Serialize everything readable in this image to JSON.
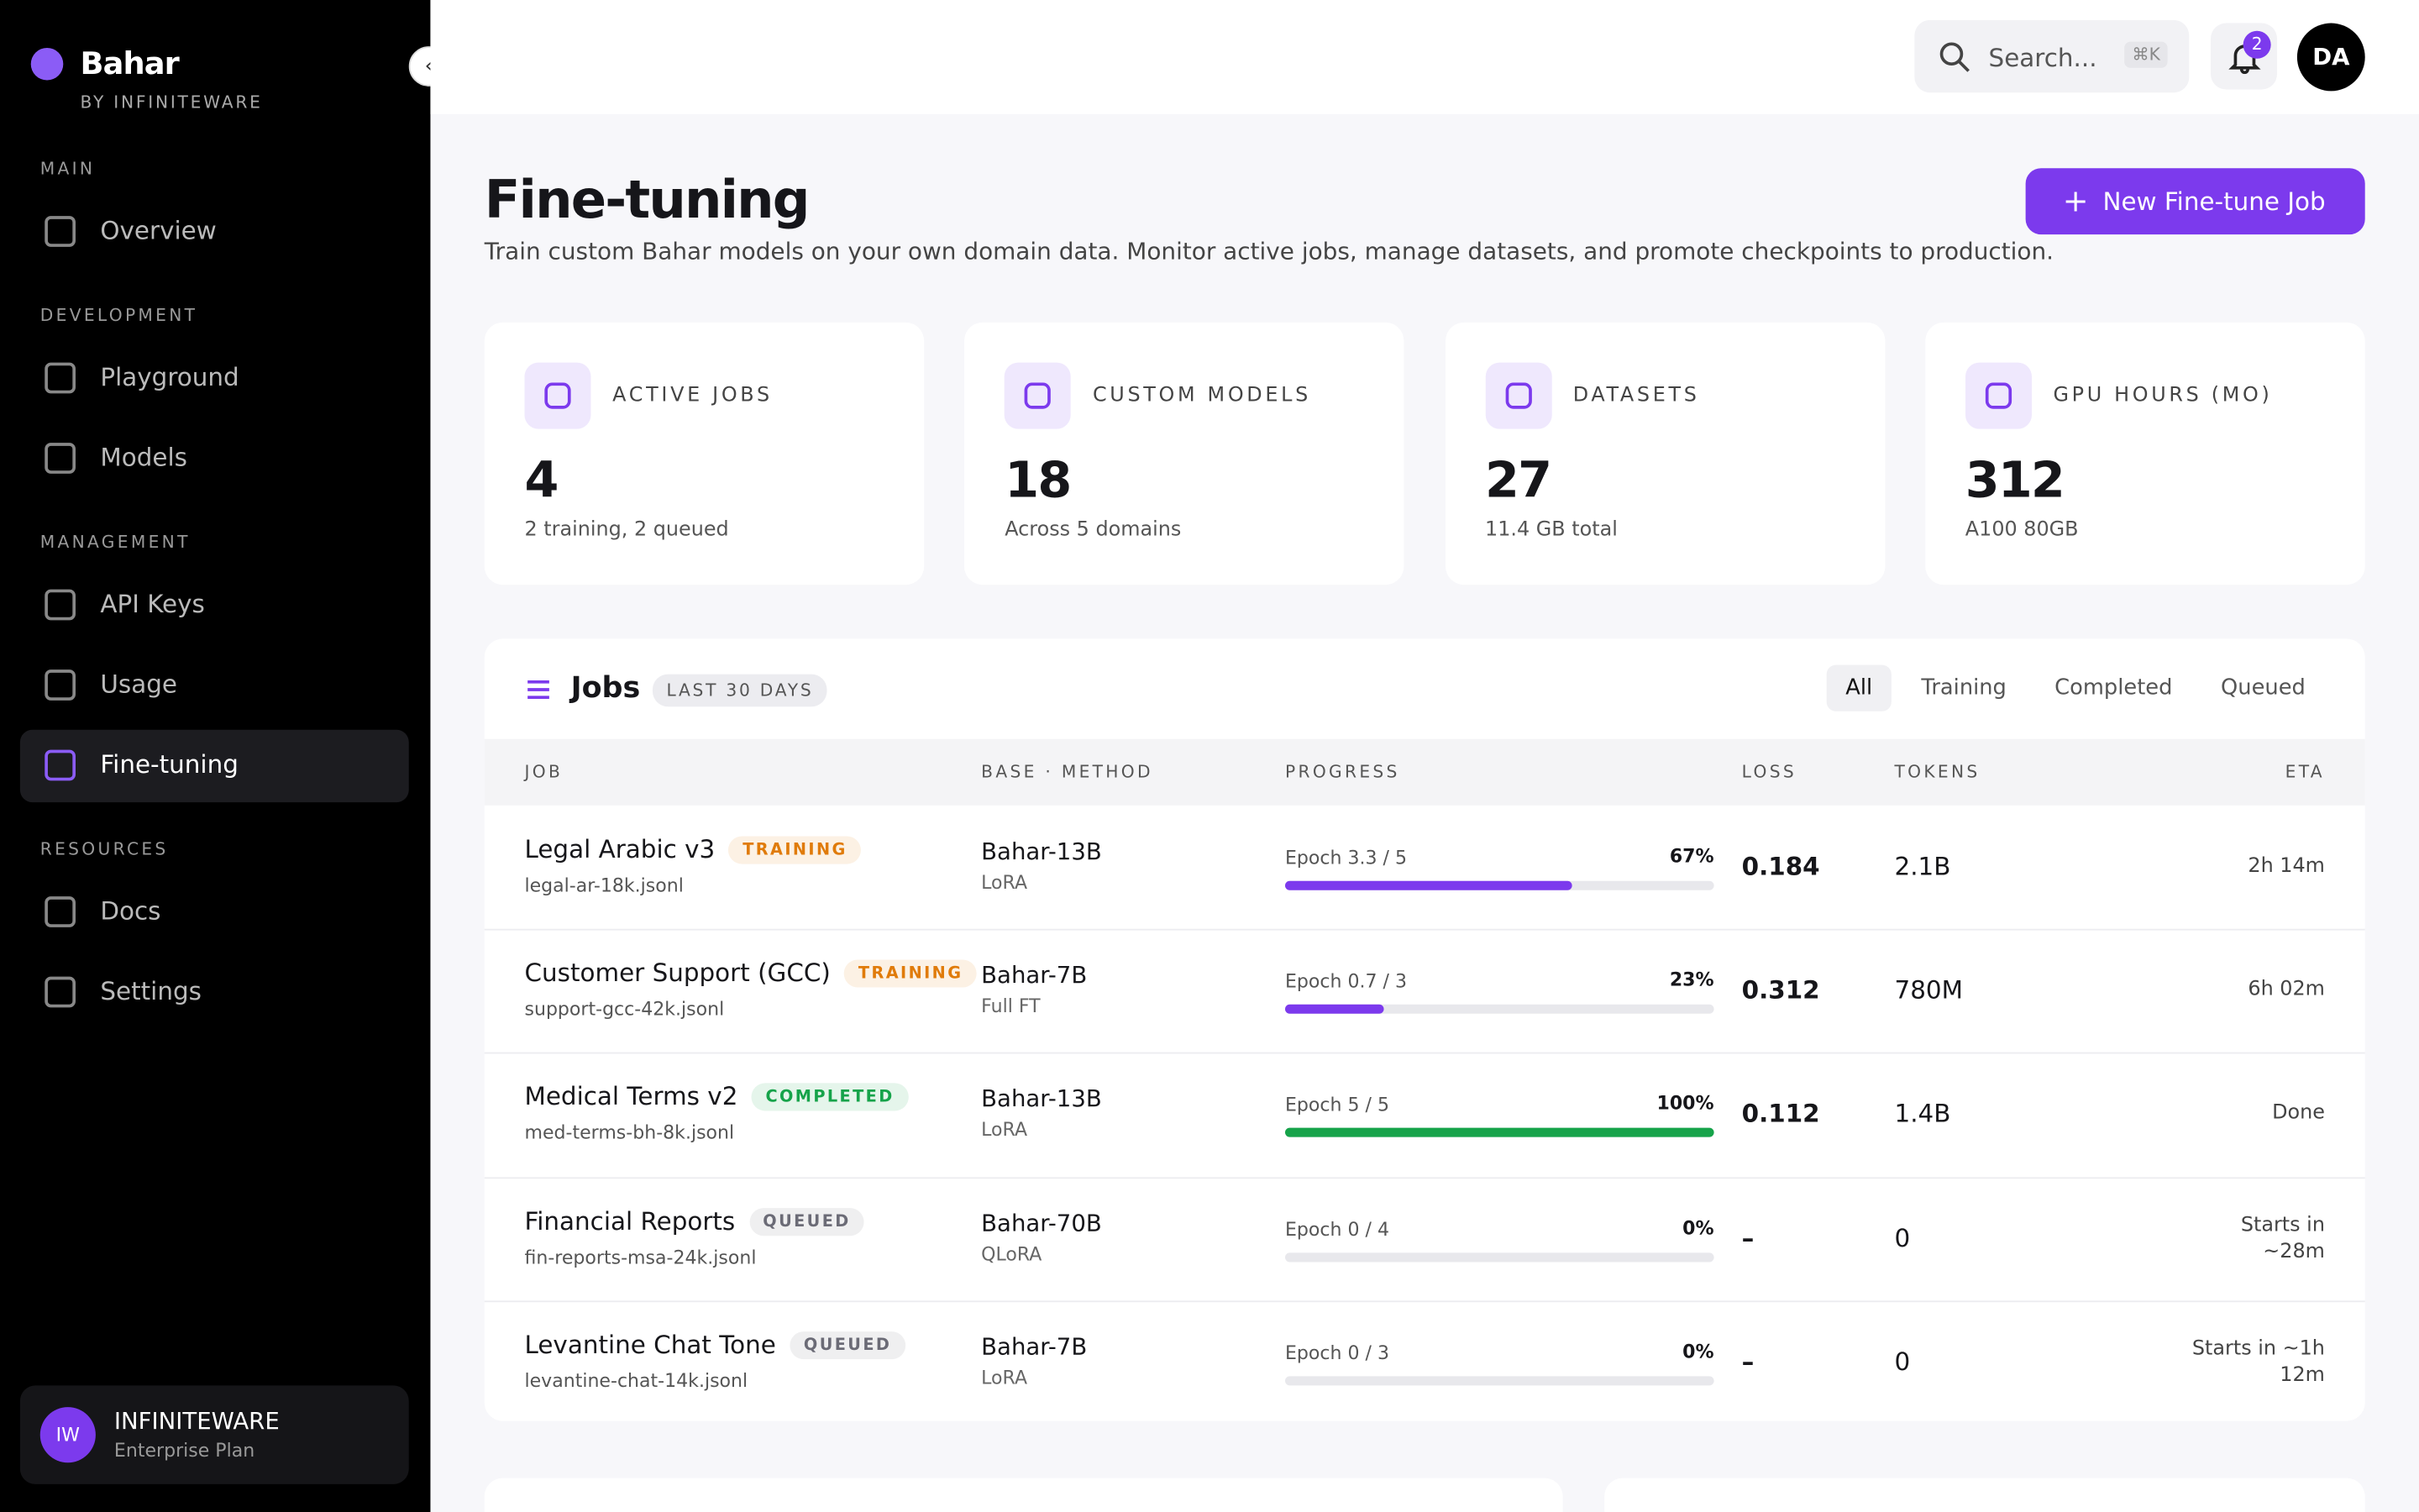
{
  "brand": {
    "name": "Bahar",
    "tagline": "BY INFINITEWARE"
  },
  "nav": [
    {
      "title": "MAIN",
      "items": [
        "Overview"
      ]
    },
    {
      "title": "DEVELOPMENT",
      "items": [
        "Playground",
        "Models"
      ]
    },
    {
      "title": "MANAGEMENT",
      "items": [
        "API Keys",
        "Usage",
        "Fine-tuning"
      ]
    },
    {
      "title": "RESOURCES",
      "items": [
        "Docs",
        "Settings"
      ]
    }
  ],
  "account": {
    "initials": "IW",
    "name": "INFINITEWARE",
    "plan": "Enterprise Plan"
  },
  "topbar": {
    "search": "Search...",
    "shortcut": "⌘K",
    "notifications": "2",
    "avatar": "DA"
  },
  "header": {
    "title": "Fine-tuning",
    "subtitle": "Train custom Bahar models on your own domain data. Monitor active jobs, manage datasets, and promote checkpoints to production.",
    "button": "New Fine-tune Job"
  },
  "stats": [
    {
      "label": "ACTIVE JOBS",
      "value": "4",
      "note": "2 training, 2 queued"
    },
    {
      "label": "CUSTOM MODELS",
      "value": "18",
      "note": "Across 5 domains"
    },
    {
      "label": "DATASETS",
      "value": "27",
      "note": "11.4 GB total"
    },
    {
      "label": "GPU HOURS (MO)",
      "value": "312",
      "note": "A100 80GB"
    }
  ],
  "jobs": {
    "title": "Jobs",
    "range": "LAST 30 DAYS",
    "filters": [
      "All",
      "Training",
      "Completed",
      "Queued"
    ],
    "columns": [
      "JOB",
      "BASE · METHOD",
      "PROGRESS",
      "LOSS",
      "TOKENS",
      "ETA"
    ],
    "rows": [
      {
        "name": "Legal Arabic v3",
        "status": "TRAINING",
        "status_color": "#e07b0a",
        "file": "legal-ar-18k.jsonl",
        "base": "Bahar-13B",
        "method": "LoRA",
        "epoch": "Epoch 3.3 / 5",
        "progress": "67%",
        "bar_color": "#7c3aed",
        "loss": "0.184",
        "tokens": "2.1B",
        "eta": "2h 14m"
      },
      {
        "name": "Customer Support (GCC)",
        "status": "TRAINING",
        "status_color": "#e07b0a",
        "file": "support-gcc-42k.jsonl",
        "base": "Bahar-7B",
        "method": "Full FT",
        "epoch": "Epoch 0.7 / 3",
        "progress": "23%",
        "bar_color": "#7c3aed",
        "loss": "0.312",
        "tokens": "780M",
        "eta": "6h 02m"
      },
      {
        "name": "Medical Terms v2",
        "status": "COMPLETED",
        "status_color": "#16a34a",
        "file": "med-terms-bh-8k.jsonl",
        "base": "Bahar-13B",
        "method": "LoRA",
        "epoch": "Epoch 5 / 5",
        "progress": "100%",
        "bar_color": "#16a34a",
        "loss": "0.112",
        "tokens": "1.4B",
        "eta": "Done"
      },
      {
        "name": "Financial Reports",
        "status": "QUEUED",
        "status_color": "#6b6b76",
        "file": "fin-reports-msa-24k.jsonl",
        "base": "Bahar-70B",
        "method": "QLoRA",
        "epoch": "Epoch 0 / 4",
        "progress": "0%",
        "bar_color": "#7c3aed",
        "loss": "–",
        "tokens": "0",
        "eta": "Starts in ~28m"
      },
      {
        "name": "Levantine Chat Tone",
        "status": "QUEUED",
        "status_color": "#6b6b76",
        "file": "levantine-chat-14k.jsonl",
        "base": "Bahar-7B",
        "method": "LoRA",
        "epoch": "Epoch 0 / 3",
        "progress": "0%",
        "bar_color": "#7c3aed",
        "loss": "–",
        "tokens": "0",
        "eta": "Starts in ~1h 12m"
      }
    ]
  }
}
